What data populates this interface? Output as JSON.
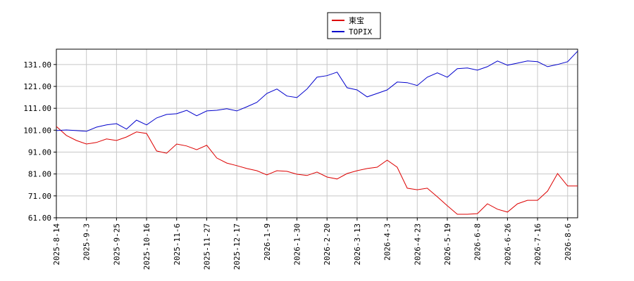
{
  "chart_data": {
    "type": "line",
    "categories": [
      "2025-8-14",
      null,
      null,
      "2025-9-3",
      null,
      null,
      "2025-9-25",
      null,
      null,
      "2025-10-16",
      null,
      null,
      "2025-11-6",
      null,
      null,
      "2025-11-27",
      null,
      null,
      "2025-12-17",
      null,
      null,
      "2026-1-9",
      null,
      null,
      "2026-1-30",
      null,
      null,
      "2026-2-20",
      null,
      null,
      "2026-3-13",
      null,
      null,
      "2026-4-3",
      null,
      null,
      "2026-4-23",
      null,
      null,
      "2026-5-19",
      null,
      null,
      "2026-6-8",
      null,
      null,
      "2026-6-26",
      null,
      null,
      "2026-7-16",
      null,
      null,
      "2026-8-6",
      null
    ],
    "series": [
      {
        "name": "東宝",
        "color": "#dd0000",
        "values": [
          102.7,
          98.6,
          96.3,
          94.7,
          95.4,
          97.0,
          96.3,
          97.9,
          100.2,
          99.5,
          91.5,
          90.5,
          94.7,
          93.8,
          92.1,
          94.1,
          88.3,
          86.0,
          84.8,
          83.5,
          82.5,
          80.6,
          82.5,
          82.2,
          80.9,
          80.3,
          81.9,
          79.6,
          78.7,
          81.2,
          82.5,
          83.5,
          84.1,
          87.3,
          84.1,
          74.5,
          73.8,
          74.5,
          70.6,
          66.5,
          62.6,
          62.6,
          62.9,
          67.4,
          64.9,
          63.6,
          67.4,
          69.0,
          69.0,
          73.2,
          81.2,
          75.5,
          75.5
        ]
      },
      {
        "name": "TOPIX",
        "color": "#0000cc",
        "values": [
          100.8,
          101.1,
          100.8,
          100.5,
          102.4,
          103.4,
          104.0,
          101.5,
          105.6,
          103.4,
          106.6,
          108.2,
          108.5,
          110.1,
          107.6,
          109.8,
          110.1,
          110.8,
          109.8,
          111.7,
          113.7,
          117.8,
          119.8,
          116.6,
          115.9,
          119.8,
          125.2,
          125.9,
          127.5,
          120.4,
          119.4,
          116.2,
          117.8,
          119.4,
          123.0,
          122.7,
          121.4,
          125.2,
          127.2,
          125.2,
          129.1,
          129.4,
          128.4,
          130.0,
          132.6,
          130.7,
          131.6,
          132.6,
          132.3,
          130.0,
          131.0,
          132.3,
          137.1
        ]
      }
    ],
    "ylim": [
      61,
      138
    ],
    "yticks": [
      {
        "value": 61,
        "label": "61.00"
      },
      {
        "value": 71,
        "label": "71.00"
      },
      {
        "value": 81,
        "label": "81.00"
      },
      {
        "value": 91,
        "label": "91.00"
      },
      {
        "value": 101,
        "label": "101.00"
      },
      {
        "value": 111,
        "label": "111.00"
      },
      {
        "value": 121,
        "label": "121.00"
      },
      {
        "value": 131,
        "label": "131.00"
      }
    ],
    "grid": true
  }
}
